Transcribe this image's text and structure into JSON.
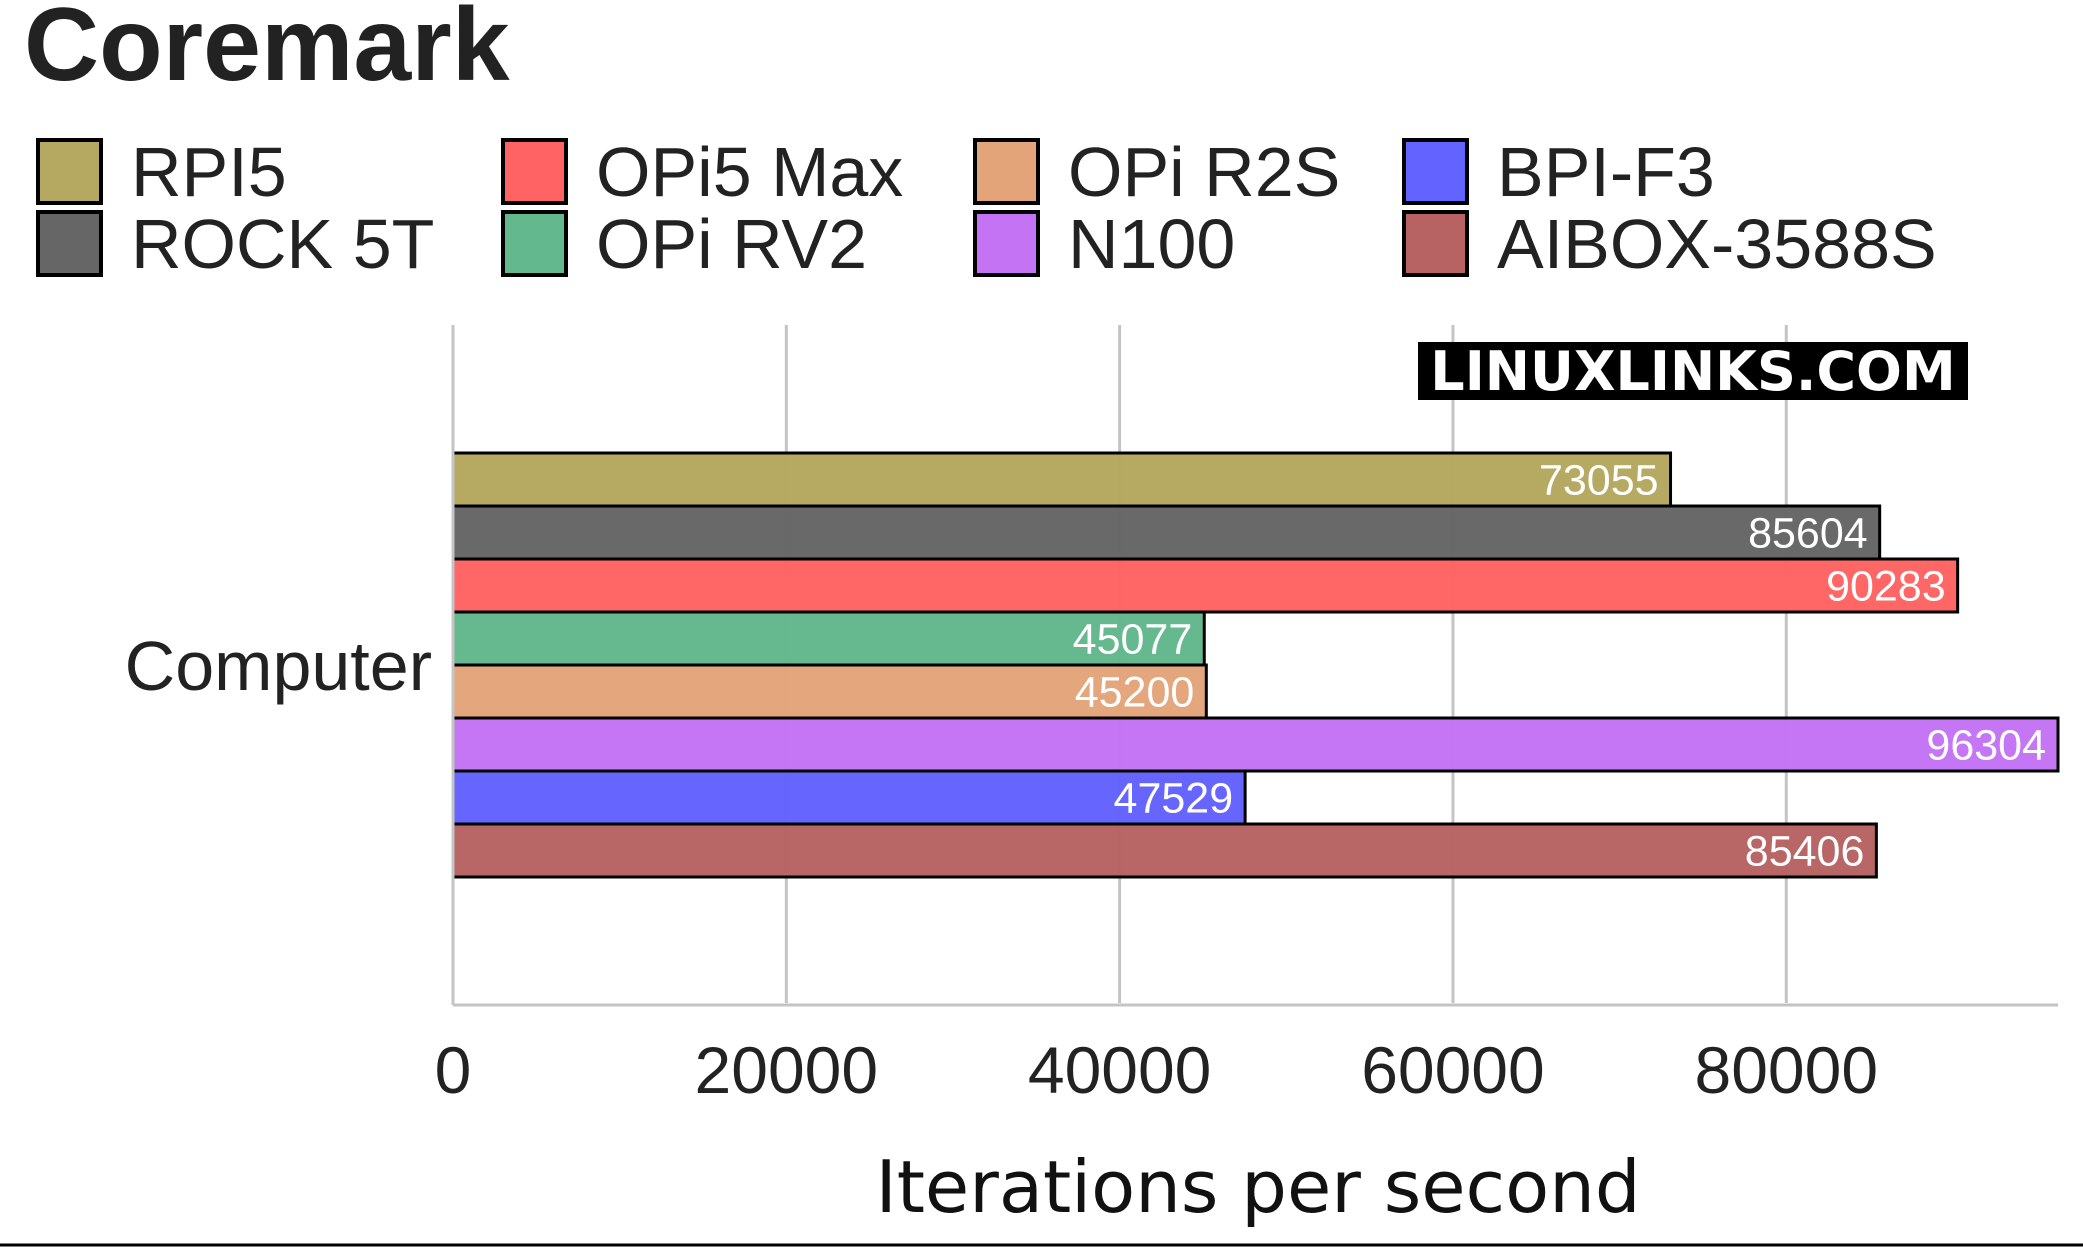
{
  "chart_data": {
    "type": "bar",
    "orientation": "horizontal",
    "title": "Coremark",
    "categories": [
      "Computer"
    ],
    "xlabel": "Iterations per second",
    "ylabel": "",
    "xlim": [
      0,
      96304
    ],
    "xticks": [
      0,
      20000,
      40000,
      60000,
      80000
    ],
    "grid": true,
    "legend_position": "top",
    "series": [
      {
        "name": "RPI5",
        "values": [
          73055
        ],
        "color": "#b5a860"
      },
      {
        "name": "ROCK 5T",
        "values": [
          85604
        ],
        "color": "#666666"
      },
      {
        "name": "OPi5 Max",
        "values": [
          90283
        ],
        "color": "#ff6363"
      },
      {
        "name": "OPi RV2",
        "values": [
          45077
        ],
        "color": "#63b88d"
      },
      {
        "name": "OPi R2S",
        "values": [
          45200
        ],
        "color": "#e3a47a"
      },
      {
        "name": "N100",
        "values": [
          96304
        ],
        "color": "#c473f5"
      },
      {
        "name": "BPI-F3",
        "values": [
          47529
        ],
        "color": "#6363ff"
      },
      {
        "name": "AIBOX-3588S",
        "values": [
          85406
        ],
        "color": "#b86363"
      }
    ],
    "legend_order": [
      "RPI5",
      "OPi5 Max",
      "OPi R2S",
      "BPI-F3",
      "ROCK 5T",
      "OPi RV2",
      "N100",
      "AIBOX-3588S"
    ]
  },
  "watermark": "LINUXLINKS.COM"
}
